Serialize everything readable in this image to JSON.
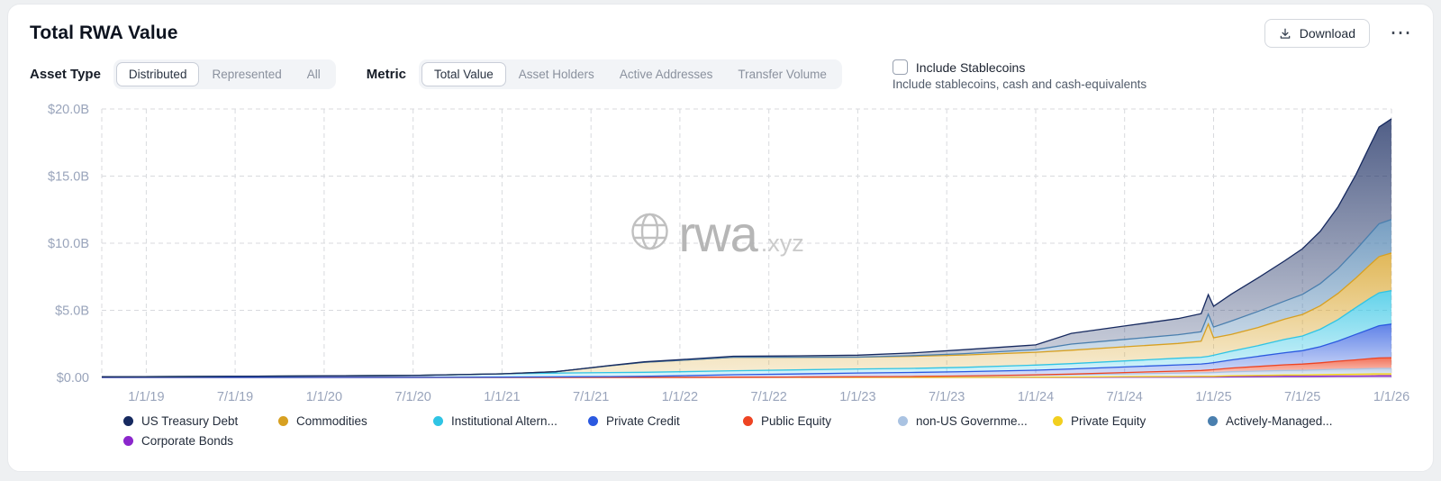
{
  "header": {
    "title": "Total RWA Value",
    "download_label": "Download",
    "more_glyph": "⋯"
  },
  "controls": {
    "asset_type": {
      "label": "Asset Type",
      "options": [
        "Distributed",
        "Represented",
        "All"
      ],
      "selected": "Distributed"
    },
    "metric": {
      "label": "Metric",
      "options": [
        "Total Value",
        "Asset Holders",
        "Active Addresses",
        "Transfer Volume"
      ],
      "selected": "Total Value"
    },
    "stablecoins": {
      "label": "Include Stablecoins",
      "sublabel": "Include stablecoins, cash and cash-equivalents",
      "checked": false
    }
  },
  "watermark": {
    "brand": "rwa",
    "suffix": ".xyz"
  },
  "chart_data": {
    "type": "area",
    "stacked": true,
    "title": "Total RWA Value",
    "ylim": [
      0,
      20
    ],
    "xlim": [
      2018.75,
      2026.0
    ],
    "grid": true,
    "legend_position": "bottom",
    "y_ticks": [
      {
        "v": 0,
        "label": "$0.00"
      },
      {
        "v": 5,
        "label": "$5.0B"
      },
      {
        "v": 10,
        "label": "$10.0B"
      },
      {
        "v": 15,
        "label": "$15.0B"
      },
      {
        "v": 20,
        "label": "$20.0B"
      }
    ],
    "x_ticks": [
      {
        "v": 2019.0,
        "label": "1/1/19"
      },
      {
        "v": 2019.5,
        "label": "7/1/19"
      },
      {
        "v": 2020.0,
        "label": "1/1/20"
      },
      {
        "v": 2020.5,
        "label": "7/1/20"
      },
      {
        "v": 2021.0,
        "label": "1/1/21"
      },
      {
        "v": 2021.5,
        "label": "7/1/21"
      },
      {
        "v": 2022.0,
        "label": "1/1/22"
      },
      {
        "v": 2022.5,
        "label": "7/1/22"
      },
      {
        "v": 2023.0,
        "label": "1/1/23"
      },
      {
        "v": 2023.5,
        "label": "7/1/23"
      },
      {
        "v": 2024.0,
        "label": "1/1/24"
      },
      {
        "v": 2024.5,
        "label": "7/1/24"
      },
      {
        "v": 2025.0,
        "label": "1/1/25"
      },
      {
        "v": 2025.5,
        "label": "7/1/25"
      },
      {
        "v": 2026.0,
        "label": "1/1/26"
      }
    ],
    "x": [
      2018.75,
      2019.5,
      2020.5,
      2021.0,
      2021.3,
      2021.6,
      2021.8,
      2022.0,
      2022.3,
      2022.6,
      2023.0,
      2023.3,
      2023.6,
      2024.0,
      2024.2,
      2024.5,
      2024.8,
      2024.93,
      2024.97,
      2025.0,
      2025.1,
      2025.25,
      2025.4,
      2025.5,
      2025.6,
      2025.7,
      2025.8,
      2025.88,
      2025.93,
      2026.0
    ],
    "units": "USD billions",
    "series": [
      {
        "name": "Corporate Bonds",
        "color": "#8b27cc",
        "values": [
          0,
          0,
          0,
          0,
          0,
          0,
          0,
          0,
          0,
          0,
          0,
          0,
          0,
          0,
          0,
          0.02,
          0.02,
          0.03,
          0.03,
          0.03,
          0.05,
          0.06,
          0.08,
          0.08,
          0.09,
          0.1,
          0.1,
          0.11,
          0.12,
          0.12
        ]
      },
      {
        "name": "Private Equity",
        "color": "#f2cf1f",
        "values": [
          0,
          0,
          0,
          0,
          0,
          0,
          0,
          0,
          0,
          0,
          0,
          0,
          0,
          0.02,
          0.03,
          0.04,
          0.05,
          0.05,
          0.05,
          0.05,
          0.07,
          0.09,
          0.1,
          0.1,
          0.12,
          0.13,
          0.14,
          0.15,
          0.15,
          0.15
        ]
      },
      {
        "name": "non-US Governme...",
        "color": "#aac3e2",
        "values": [
          0,
          0,
          0,
          0,
          0,
          0,
          0,
          0,
          0.02,
          0.03,
          0.05,
          0.07,
          0.1,
          0.15,
          0.17,
          0.2,
          0.25,
          0.26,
          0.27,
          0.28,
          0.3,
          0.32,
          0.34,
          0.35,
          0.36,
          0.38,
          0.39,
          0.4,
          0.4,
          0.4
        ]
      },
      {
        "name": "Public Equity",
        "color": "#ee4423",
        "values": [
          0,
          0,
          0,
          0,
          0,
          0,
          0,
          0,
          0,
          0,
          0,
          0,
          0.01,
          0.02,
          0.05,
          0.1,
          0.15,
          0.18,
          0.2,
          0.22,
          0.28,
          0.35,
          0.42,
          0.46,
          0.52,
          0.6,
          0.68,
          0.74,
          0.78,
          0.8
        ]
      },
      {
        "name": "Private Credit",
        "color": "#2b59e0",
        "values": [
          0,
          0,
          0,
          0.02,
          0.04,
          0.06,
          0.08,
          0.12,
          0.18,
          0.22,
          0.28,
          0.3,
          0.32,
          0.35,
          0.38,
          0.42,
          0.46,
          0.48,
          0.5,
          0.52,
          0.6,
          0.75,
          0.9,
          1.0,
          1.2,
          1.5,
          1.9,
          2.2,
          2.4,
          2.5
        ]
      },
      {
        "name": "Institutional Altern...",
        "color": "#2fc4e4",
        "values": [
          0.05,
          0.08,
          0.15,
          0.25,
          0.28,
          0.3,
          0.3,
          0.3,
          0.3,
          0.3,
          0.3,
          0.3,
          0.32,
          0.38,
          0.4,
          0.45,
          0.5,
          0.5,
          0.52,
          0.55,
          0.65,
          0.8,
          1.0,
          1.1,
          1.3,
          1.6,
          2.0,
          2.3,
          2.45,
          2.5
        ]
      },
      {
        "name": "Commodities",
        "color": "#d7a021",
        "values": [
          0,
          0,
          0,
          0,
          0.1,
          0.5,
          0.75,
          0.85,
          1.0,
          0.95,
          0.88,
          0.9,
          0.92,
          0.95,
          1.0,
          1.05,
          1.1,
          1.2,
          2.4,
          1.3,
          1.25,
          1.35,
          1.5,
          1.6,
          1.75,
          1.95,
          2.2,
          2.5,
          2.7,
          2.8
        ]
      },
      {
        "name": "Actively-Managed...",
        "color": "#4a7fae",
        "values": [
          0,
          0,
          0,
          0,
          0,
          0,
          0,
          0,
          0,
          0,
          0,
          0.05,
          0.1,
          0.2,
          0.45,
          0.55,
          0.65,
          0.7,
          0.75,
          0.8,
          1.0,
          1.2,
          1.35,
          1.5,
          1.65,
          1.85,
          2.1,
          2.3,
          2.45,
          2.5
        ]
      },
      {
        "name": "US Treasury Debt",
        "color": "#16295f",
        "values": [
          0,
          0,
          0,
          0,
          0,
          0.02,
          0.03,
          0.05,
          0.08,
          0.1,
          0.15,
          0.2,
          0.3,
          0.35,
          0.8,
          1.0,
          1.2,
          1.35,
          1.45,
          1.55,
          2.0,
          2.5,
          3.0,
          3.4,
          3.9,
          4.6,
          5.6,
          6.6,
          7.2,
          7.5
        ]
      }
    ],
    "legend_order": [
      8,
      6,
      5,
      4,
      3,
      2,
      1,
      7,
      0
    ]
  }
}
